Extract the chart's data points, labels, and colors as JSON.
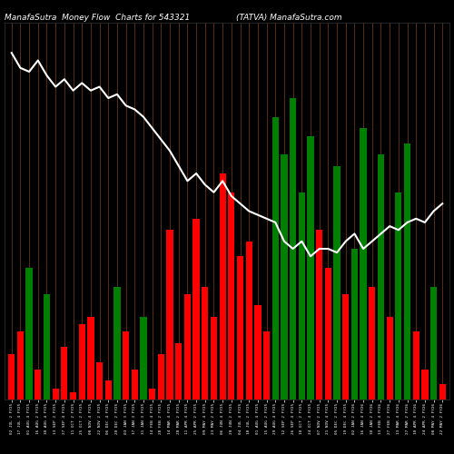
{
  "title_left": "ManafaSutra  Money Flow  Charts for 543321",
  "title_right": "(TATVA) ManafaSutra.com",
  "background_color": "#000000",
  "bar_colors": [
    "red",
    "red",
    "green",
    "red",
    "green",
    "red",
    "red",
    "red",
    "red",
    "red",
    "red",
    "red",
    "green",
    "red",
    "red",
    "green",
    "red",
    "red",
    "red",
    "red",
    "red",
    "red",
    "red",
    "red",
    "red",
    "red",
    "red",
    "red",
    "red",
    "red",
    "green",
    "green",
    "green",
    "green",
    "green",
    "red",
    "red",
    "green",
    "red",
    "green",
    "green",
    "red",
    "green",
    "red",
    "green",
    "green",
    "red",
    "red",
    "green",
    "red"
  ],
  "bar_heights": [
    12,
    18,
    35,
    8,
    28,
    3,
    14,
    2,
    20,
    22,
    10,
    5,
    30,
    18,
    8,
    22,
    3,
    12,
    45,
    15,
    28,
    48,
    30,
    22,
    60,
    55,
    38,
    42,
    25,
    18,
    75,
    65,
    80,
    55,
    70,
    45,
    35,
    62,
    28,
    40,
    72,
    30,
    65,
    22,
    55,
    68,
    18,
    8,
    30,
    4
  ],
  "line_values": [
    92,
    88,
    87,
    90,
    86,
    83,
    85,
    82,
    84,
    82,
    83,
    80,
    81,
    78,
    77,
    75,
    72,
    69,
    66,
    62,
    58,
    60,
    57,
    55,
    58,
    54,
    52,
    50,
    49,
    48,
    47,
    42,
    40,
    42,
    38,
    40,
    40,
    39,
    42,
    44,
    40,
    42,
    44,
    46,
    45,
    47,
    48,
    47,
    50,
    52
  ],
  "line_color": "#ffffff",
  "grid_color": "#8B4513",
  "xlabel_color": "#ffffff",
  "title_color": "#ffffff",
  "x_labels": [
    "02 JUL 2 FY25",
    "17 JUL 4 FY25",
    "01 AUG 4 FY25",
    "16 AUG 2 FY25",
    "30 AUG 4 FY25",
    "13 SEP 2 FY25",
    "27 SEP 4 FY25",
    "11 OCT 2 FY25",
    "25 OCT 2 FY25",
    "08 NOV 4 FY25",
    "22 NOV 2 FY25",
    "06 DEC 4 FY25",
    "20 DEC 2 FY25",
    "03 JAN 3 FY25",
    "17 JAN 3 FY25",
    "31 JAN 3 FY25",
    "14 FEB 4 FY25",
    "28 FEB 2 FY25",
    "14 MAR 4 FY25",
    "28 MAR 2 FY25",
    "11 APR 4 FY25",
    "25 APR 2 FY25",
    "09 MAY 4 FY25",
    "23 MAY 2 FY25",
    "06 JUN 4 FY25",
    "20 JUN 2 FY25",
    "04 JUL 4 FY25",
    "18 JUL 2 FY25",
    "01 AUG 4 FY25",
    "15 AUG 2 FY25",
    "29 AUG 4 FY25",
    "12 SEP 2 FY25",
    "26 SEP 4 FY25",
    "10 OCT 2 FY25",
    "24 OCT 4 FY25",
    "07 NOV 2 FY25",
    "21 NOV 4 FY25",
    "05 DEC 2 FY25",
    "19 DEC 4 FY25",
    "02 JAN 2 FY26",
    "16 JAN 4 FY26",
    "30 JAN 2 FY26",
    "13 FEB 4 FY26",
    "27 FEB 2 FY26",
    "13 MAR 4 FY26",
    "27 MAR 2 FY26",
    "10 APR 4 FY26",
    "24 APR 2 FY26",
    "08 MAY 4 FY26",
    "22 MAY 2 FY26"
  ]
}
